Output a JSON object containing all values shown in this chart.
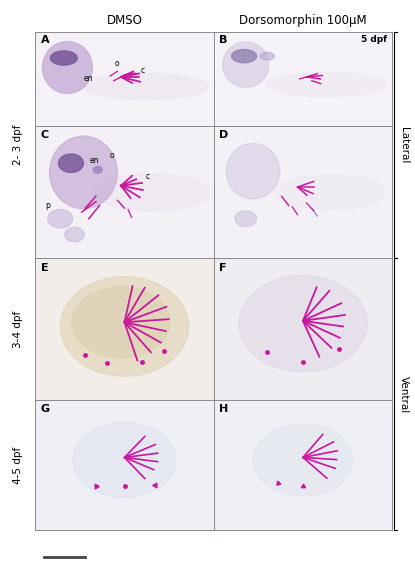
{
  "fig_width": 4.15,
  "fig_height": 5.73,
  "dpi": 100,
  "bg_color": "#ffffff",
  "col_labels": [
    "DMSO",
    "Dorsomorphin 100μM"
  ],
  "lateral_label": "Lateral",
  "ventral_label": "Ventral",
  "row_label_23": "2- 3 dpf",
  "row_label_34": "3-4 dpf",
  "row_label_45": "4-5 dpf",
  "dpf_label": "5 dpf",
  "magenta": "#c8189c",
  "purple_dark": "#7b5a9a",
  "purple_mid": "#a080c0",
  "purple_light": "#c8b0d8",
  "body_color": "#ede5ee",
  "scale_bar_color": "#444444"
}
